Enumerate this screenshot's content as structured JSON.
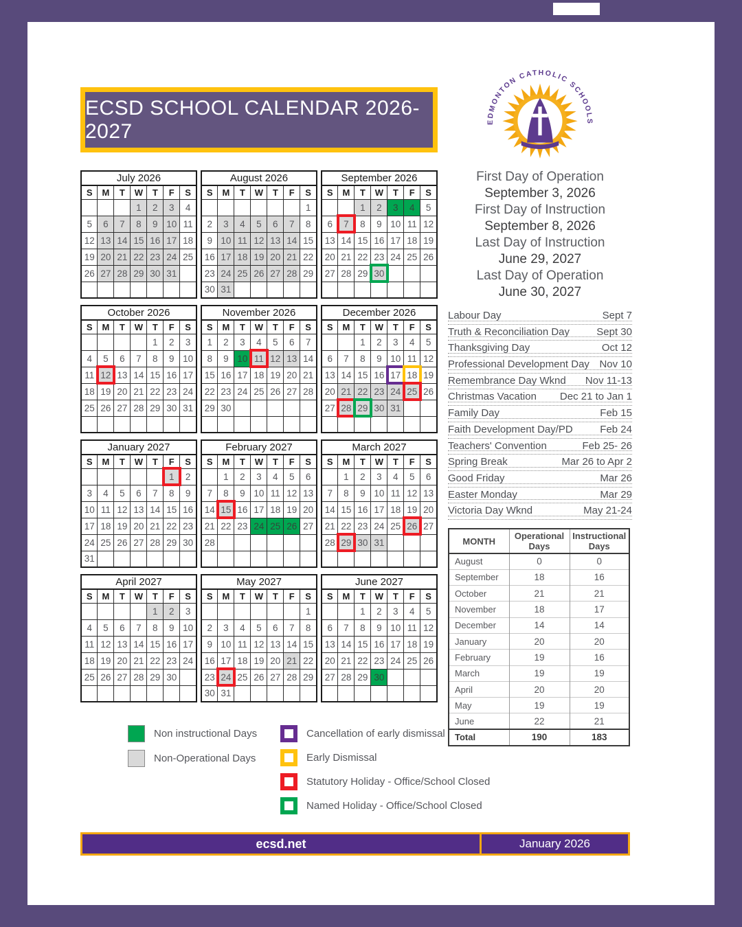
{
  "header": {
    "title": "ECSD SCHOOL CALENDAR 2026-2027"
  },
  "logo": {
    "text": "EDMONTON CATHOLIC SCHOOLS"
  },
  "key_dates": [
    {
      "label": "First Day of Operation",
      "date": "September 3, 2026"
    },
    {
      "label": "First Day of Instruction",
      "date": "September 8, 2026"
    },
    {
      "label": "Last Day of Instruction",
      "date": "June 29, 2027"
    },
    {
      "label": "Last Day of Operation",
      "date": "June 30, 2027"
    }
  ],
  "weekday_headers": [
    "S",
    "M",
    "T",
    "W",
    "T",
    "F",
    "S"
  ],
  "months": [
    {
      "name": "July 2026",
      "weeks": [
        [
          "",
          "",
          "",
          "1|g",
          "2|g",
          "3|g",
          "4"
        ],
        [
          "5",
          "6|g",
          "7|g",
          "8|g",
          "9|g",
          "10|g",
          "11"
        ],
        [
          "12",
          "13|g",
          "14|g",
          "15|g",
          "16|g",
          "17|g",
          "18"
        ],
        [
          "19",
          "20|g",
          "21|g",
          "22|g",
          "23|g",
          "24|g",
          "25"
        ],
        [
          "26",
          "27|g",
          "28|g",
          "29|g",
          "30|g",
          "31|g",
          ""
        ],
        [
          "",
          "",
          "",
          "",
          "",
          "",
          ""
        ]
      ]
    },
    {
      "name": "August 2026",
      "weeks": [
        [
          "",
          "",
          "",
          "",
          "",
          "",
          "1"
        ],
        [
          "2",
          "3|g",
          "4|g",
          "5|g",
          "6|g",
          "7|g",
          "8"
        ],
        [
          "9",
          "10|g",
          "11|g",
          "12|g",
          "13|g",
          "14|g",
          "15"
        ],
        [
          "16",
          "17|g",
          "18|g",
          "19|g",
          "20|g",
          "21|g",
          "22"
        ],
        [
          "23",
          "24|g",
          "25|g",
          "26|g",
          "27|g",
          "28|g",
          "29"
        ],
        [
          "30",
          "31|g",
          "",
          "",
          "",
          "",
          ""
        ]
      ]
    },
    {
      "name": "September 2026",
      "weeks": [
        [
          "",
          "",
          "1|g",
          "2|g",
          "3|G",
          "4|G",
          "5"
        ],
        [
          "6",
          "7|gR",
          "8",
          "9",
          "10",
          "11",
          "12"
        ],
        [
          "13",
          "14",
          "15",
          "16",
          "17",
          "18",
          "19"
        ],
        [
          "20",
          "21",
          "22",
          "23",
          "24",
          "25",
          "26"
        ],
        [
          "27",
          "28",
          "29",
          "30|gN",
          "",
          "",
          ""
        ],
        [
          "",
          "",
          "",
          "",
          "",
          "",
          ""
        ]
      ]
    },
    {
      "name": "October 2026",
      "weeks": [
        [
          "",
          "",
          "",
          "",
          "1",
          "2",
          "3"
        ],
        [
          "4",
          "5",
          "6",
          "7",
          "8",
          "9",
          "10"
        ],
        [
          "11",
          "12|gR",
          "13",
          "14",
          "15",
          "16",
          "17"
        ],
        [
          "18",
          "19",
          "20",
          "21",
          "22",
          "23",
          "24"
        ],
        [
          "25",
          "26",
          "27",
          "28",
          "29",
          "30",
          "31"
        ],
        [
          "",
          "",
          "",
          "",
          "",
          "",
          ""
        ]
      ]
    },
    {
      "name": "November 2026",
      "weeks": [
        [
          "1",
          "2",
          "3",
          "4",
          "5",
          "6",
          "7"
        ],
        [
          "8",
          "9",
          "10|G",
          "11|gR",
          "12|g",
          "13|g",
          "14"
        ],
        [
          "15",
          "16",
          "17",
          "18",
          "19",
          "20",
          "21"
        ],
        [
          "22",
          "23",
          "24",
          "25",
          "26",
          "27",
          "28"
        ],
        [
          "29",
          "30",
          "",
          "",
          "",
          "",
          ""
        ],
        [
          "",
          "",
          "",
          "",
          "",
          "",
          ""
        ]
      ]
    },
    {
      "name": "December 2026",
      "weeks": [
        [
          "",
          "",
          "1",
          "2",
          "3",
          "4",
          "5"
        ],
        [
          "6",
          "7",
          "8",
          "9",
          "10",
          "11",
          "12"
        ],
        [
          "13",
          "14",
          "15",
          "16",
          "17|P",
          "18|Y",
          "19"
        ],
        [
          "20",
          "21|g",
          "22|g",
          "23|g",
          "24|g",
          "25|gR",
          "26"
        ],
        [
          "27",
          "28|gR",
          "29|gN",
          "30|g",
          "31|g",
          "",
          ""
        ],
        [
          "",
          "",
          "",
          "",
          "",
          "",
          ""
        ]
      ]
    },
    {
      "name": "January 2027",
      "weeks": [
        [
          "",
          "",
          "",
          "",
          "",
          "1|gR",
          "2"
        ],
        [
          "3",
          "4",
          "5",
          "6",
          "7",
          "8",
          "9"
        ],
        [
          "10",
          "11",
          "12",
          "13",
          "14",
          "15",
          "16"
        ],
        [
          "17",
          "18",
          "19",
          "20",
          "21",
          "22",
          "23"
        ],
        [
          "24",
          "25",
          "26",
          "27",
          "28",
          "29",
          "30"
        ],
        [
          "31",
          "",
          "",
          "",
          "",
          "",
          ""
        ]
      ]
    },
    {
      "name": "February 2027",
      "weeks": [
        [
          "",
          "1",
          "2",
          "3",
          "4",
          "5",
          "6"
        ],
        [
          "7",
          "8",
          "9",
          "10",
          "11",
          "12",
          "13"
        ],
        [
          "14",
          "15|gR",
          "16",
          "17",
          "18",
          "19",
          "20"
        ],
        [
          "21",
          "22",
          "23",
          "24|G",
          "25|G",
          "26|G",
          "27"
        ],
        [
          "28",
          "",
          "",
          "",
          "",
          "",
          ""
        ],
        [
          "",
          "",
          "",
          "",
          "",
          "",
          ""
        ]
      ]
    },
    {
      "name": "March 2027",
      "weeks": [
        [
          "",
          "1",
          "2",
          "3",
          "4",
          "5",
          "6"
        ],
        [
          "7",
          "8",
          "9",
          "10",
          "11",
          "12",
          "13"
        ],
        [
          "14",
          "15",
          "16",
          "17",
          "18",
          "19",
          "20"
        ],
        [
          "21",
          "22",
          "23",
          "24",
          "25",
          "26|gR",
          "27"
        ],
        [
          "28",
          "29|gR",
          "30|g",
          "31|g",
          "",
          "",
          ""
        ],
        [
          "",
          "",
          "",
          "",
          "",
          "",
          ""
        ]
      ]
    },
    {
      "name": "April 2027",
      "weeks": [
        [
          "",
          "",
          "",
          "",
          "1|g",
          "2|g",
          "3"
        ],
        [
          "4",
          "5",
          "6",
          "7",
          "8",
          "9",
          "10"
        ],
        [
          "11",
          "12",
          "13",
          "14",
          "15",
          "16",
          "17"
        ],
        [
          "18",
          "19",
          "20",
          "21",
          "22",
          "23",
          "24"
        ],
        [
          "25",
          "26",
          "27",
          "28",
          "29",
          "30",
          ""
        ],
        [
          "",
          "",
          "",
          "",
          "",
          "",
          ""
        ]
      ]
    },
    {
      "name": "May 2027",
      "weeks": [
        [
          "",
          "",
          "",
          "",
          "",
          "",
          "1"
        ],
        [
          "2",
          "3",
          "4",
          "5",
          "6",
          "7",
          "8"
        ],
        [
          "9",
          "10",
          "11",
          "12",
          "13",
          "14",
          "15"
        ],
        [
          "16",
          "17",
          "18",
          "19",
          "20",
          "21|g",
          "22"
        ],
        [
          "23",
          "24|gR",
          "25",
          "26",
          "27",
          "28",
          "29"
        ],
        [
          "30",
          "31",
          "",
          "",
          "",
          "",
          ""
        ]
      ]
    },
    {
      "name": "June 2027",
      "weeks": [
        [
          "",
          "",
          "1",
          "2",
          "3",
          "4",
          "5"
        ],
        [
          "6",
          "7",
          "8",
          "9",
          "10",
          "11",
          "12"
        ],
        [
          "13",
          "14",
          "15",
          "16",
          "17",
          "18",
          "19"
        ],
        [
          "20",
          "21",
          "22",
          "23",
          "24",
          "25",
          "26"
        ],
        [
          "27",
          "28",
          "29",
          "30|G",
          "",
          "",
          ""
        ],
        [
          "",
          "",
          "",
          "",
          "",
          "",
          ""
        ]
      ]
    }
  ],
  "holidays": [
    {
      "name": "Labour Day",
      "date": "Sept 7"
    },
    {
      "name": "Truth & Reconciliation Day",
      "date": "Sept 30"
    },
    {
      "name": "Thanksgiving Day",
      "date": "Oct 12"
    },
    {
      "name": "Professional Development Day",
      "date": "Nov 10"
    },
    {
      "name": "Remembrance Day Wknd",
      "date": "Nov 11-13"
    },
    {
      "name": "Christmas Vacation",
      "date": "Dec 21 to Jan 1"
    },
    {
      "name": "Family Day",
      "date": "Feb 15"
    },
    {
      "name": "Faith Development Day/PD",
      "date": "Feb 24"
    },
    {
      "name": "Teachers' Convention",
      "date": "Feb 25- 26"
    },
    {
      "name": "Spring Break",
      "date": "Mar 26 to Apr 2"
    },
    {
      "name": "Good Friday",
      "date": "Mar 26"
    },
    {
      "name": "Easter Monday",
      "date": "Mar 29"
    },
    {
      "name": "Victoria Day Wknd",
      "date": "May 21-24"
    }
  ],
  "table": {
    "headers": [
      "MONTH",
      "Operational Days",
      "Instructional Days"
    ],
    "rows": [
      [
        "August",
        "0",
        "0"
      ],
      [
        "September",
        "18",
        "16"
      ],
      [
        "October",
        "21",
        "21"
      ],
      [
        "November",
        "18",
        "17"
      ],
      [
        "December",
        "14",
        "14"
      ],
      [
        "January",
        "20",
        "20"
      ],
      [
        "February",
        "19",
        "16"
      ],
      [
        "March",
        "19",
        "19"
      ],
      [
        "April",
        "20",
        "20"
      ],
      [
        "May",
        "19",
        "19"
      ],
      [
        "June",
        "22",
        "21"
      ]
    ],
    "total_row": [
      "Total",
      "190",
      "183"
    ]
  },
  "legend": {
    "filled": [
      {
        "label": "Non instructional Days",
        "color": "#00a651"
      },
      {
        "label": "Non-Operational Days",
        "color": "#d9d9d9"
      }
    ],
    "outlined": [
      {
        "label": "Cancellation of early dismissal",
        "color": "#662d91"
      },
      {
        "label": "Early Dismissal",
        "color": "#ffc20e"
      },
      {
        "label": "Statutory Holiday - Office/School Closed",
        "color": "#ed1c24"
      },
      {
        "label": "Named Holiday - Office/School Closed",
        "color": "#00a651"
      }
    ]
  },
  "footer": {
    "site": "ecsd.net",
    "date": "January 2026"
  },
  "colors": {
    "frame_purple": "#584a7b",
    "title_purple": "#63557f",
    "footer_purple": "#512d87",
    "gold": "#ffc20e",
    "green": "#00a651",
    "red": "#ed1c24",
    "ring_purple": "#662d91",
    "non_operational_gray": "#d9d9d9"
  }
}
